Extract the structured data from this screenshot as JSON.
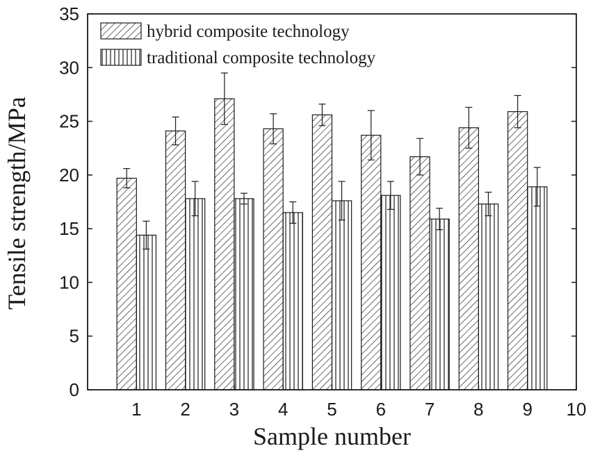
{
  "chart_data": {
    "type": "bar",
    "title": "",
    "xlabel": "Sample number",
    "ylabel": "Tensile strength/MPa",
    "xlim": [
      0,
      10
    ],
    "ylim": [
      0,
      35
    ],
    "x_ticks": [
      1,
      2,
      3,
      4,
      5,
      6,
      7,
      8,
      9,
      10
    ],
    "y_ticks": [
      0,
      5,
      10,
      15,
      20,
      25,
      30,
      35
    ],
    "categories": [
      1,
      2,
      3,
      4,
      5,
      6,
      7,
      8,
      9
    ],
    "series": [
      {
        "name": "hybrid composite technology",
        "pattern": "diagonal-hatch",
        "values": [
          19.7,
          24.1,
          27.1,
          24.3,
          25.6,
          23.7,
          21.7,
          24.4,
          25.9
        ],
        "errors": [
          0.9,
          1.3,
          2.4,
          1.4,
          1.0,
          2.3,
          1.7,
          1.9,
          1.5
        ]
      },
      {
        "name": "traditional composite technology",
        "pattern": "vertical-lines",
        "values": [
          14.4,
          17.8,
          17.8,
          16.5,
          17.6,
          18.1,
          15.9,
          17.3,
          18.9
        ],
        "errors": [
          1.3,
          1.6,
          0.5,
          1.0,
          1.8,
          1.3,
          1.0,
          1.1,
          1.8
        ]
      }
    ],
    "legend_position": "top-left",
    "grid": false,
    "colors": {
      "ink": "#1a1a1a",
      "background": "#ffffff"
    }
  }
}
